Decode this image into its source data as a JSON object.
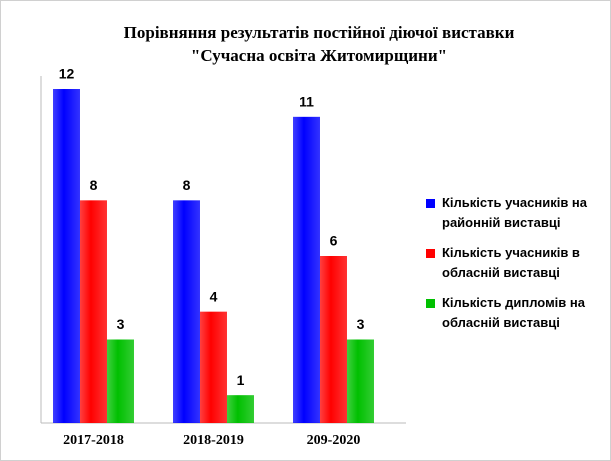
{
  "chart_data": {
    "type": "bar",
    "title": [
      "Порівняння результатів постійної діючої виставки",
      "\"Сучасна освіта Житомирщини\""
    ],
    "categories": [
      "2017-2018",
      "2018-2019",
      "209-2020"
    ],
    "series": [
      {
        "name": "Кількість учасників  на районній виставці",
        "color": "#0000ff",
        "values": [
          12,
          8,
          11
        ]
      },
      {
        "name": "Кількість учасників в обласній виставці",
        "color": "#ff0000",
        "values": [
          8,
          4,
          6
        ]
      },
      {
        "name": "Кількість дипломів на обласній виставці",
        "color": "#00c000",
        "values": [
          3,
          1,
          3
        ]
      }
    ],
    "ylim": [
      0,
      12
    ],
    "legend": "right"
  }
}
